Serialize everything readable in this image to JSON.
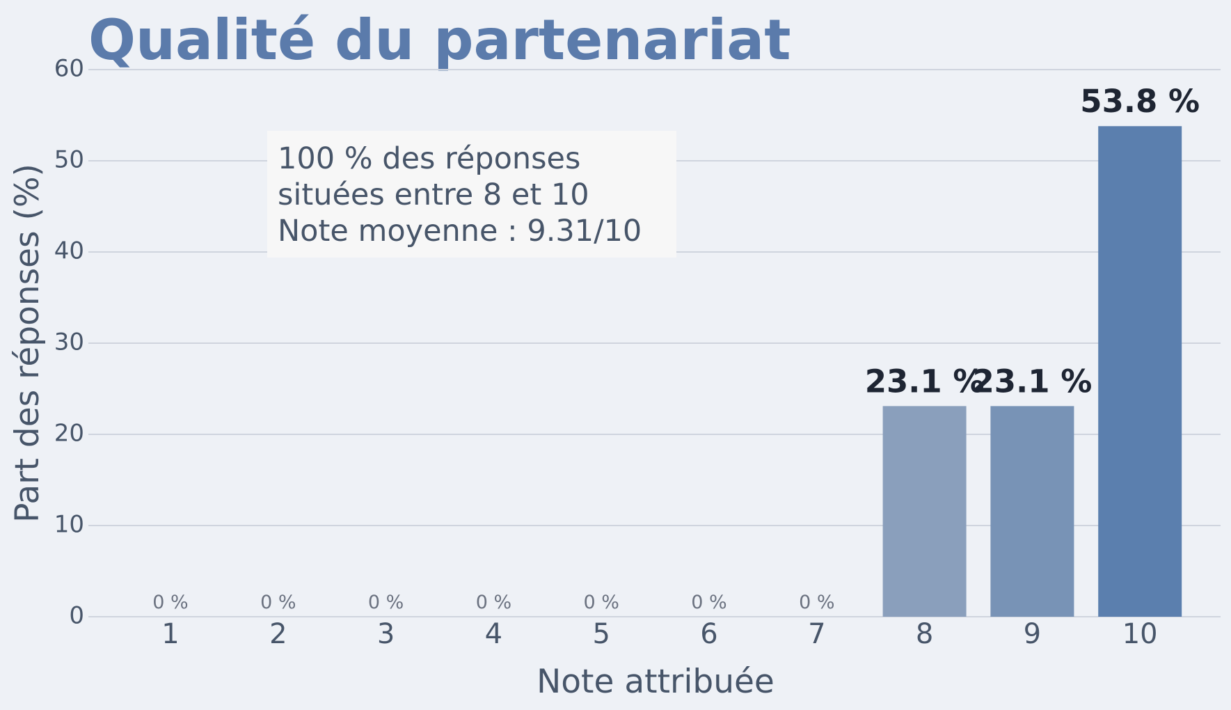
{
  "chart_data": {
    "type": "bar",
    "title": "Qualité du partenariat",
    "x_label": "Note attribuée",
    "y_label": "Part des réponses (%)",
    "annotation": [
      "100 % des réponses",
      "situées entre 8 et 10",
      "Note moyenne : 9.31/10"
    ],
    "categories": [
      "1",
      "2",
      "3",
      "4",
      "5",
      "6",
      "7",
      "8",
      "9",
      "10"
    ],
    "values": [
      0,
      0,
      0,
      0,
      0,
      0,
      0,
      23.1,
      23.1,
      53.8
    ],
    "value_labels": [
      "0 %",
      "0 %",
      "0 %",
      "0 %",
      "0 %",
      "0 %",
      "0 %",
      "23.1 %",
      "23.1 %",
      "53.8 %"
    ],
    "colors": [
      "#8a9fbc",
      "#8a9fbc",
      "#8a9fbc",
      "#8a9fbc",
      "#8a9fbc",
      "#8a9fbc",
      "#8a9fbc",
      "#8a9fbc",
      "#7893b6",
      "#5b7fae"
    ],
    "ylim": [
      0,
      60
    ],
    "yticks": [
      0,
      10,
      20,
      30,
      40,
      50,
      60
    ],
    "grid": true
  }
}
